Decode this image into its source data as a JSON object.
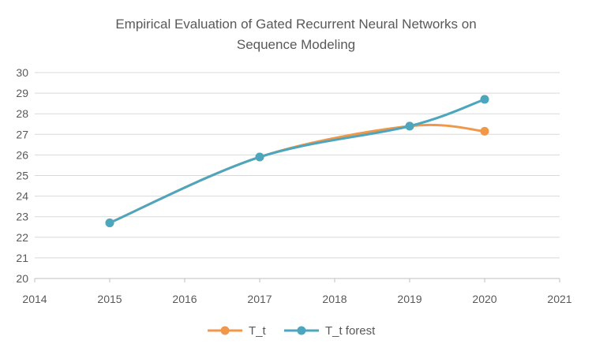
{
  "chart_data": {
    "type": "line",
    "title_lines": [
      "Empirical Evaluation of Gated Recurrent Neural Networks on",
      "Sequence Modeling"
    ],
    "xlabel": "",
    "ylabel": "",
    "xlim": [
      2014,
      2021
    ],
    "ylim": [
      20,
      30
    ],
    "x_ticks": [
      "2014",
      "2015",
      "2016",
      "2017",
      "2018",
      "2019",
      "2020",
      "2021"
    ],
    "y_ticks": [
      "20",
      "21",
      "22",
      "23",
      "24",
      "25",
      "26",
      "27",
      "28",
      "29",
      "30"
    ],
    "grid": true,
    "smooth": true,
    "legend_position": "bottom",
    "series": [
      {
        "name": "T_t",
        "color": "#f0974a",
        "points": [
          [
            2015,
            22.7
          ],
          [
            2017,
            25.9
          ],
          [
            2019,
            27.4
          ],
          [
            2020,
            27.15
          ]
        ]
      },
      {
        "name": "T_t forest",
        "color": "#4ba6be",
        "points": [
          [
            2015,
            22.7
          ],
          [
            2017,
            25.9
          ],
          [
            2019,
            27.4
          ],
          [
            2020,
            28.7
          ]
        ]
      }
    ]
  }
}
